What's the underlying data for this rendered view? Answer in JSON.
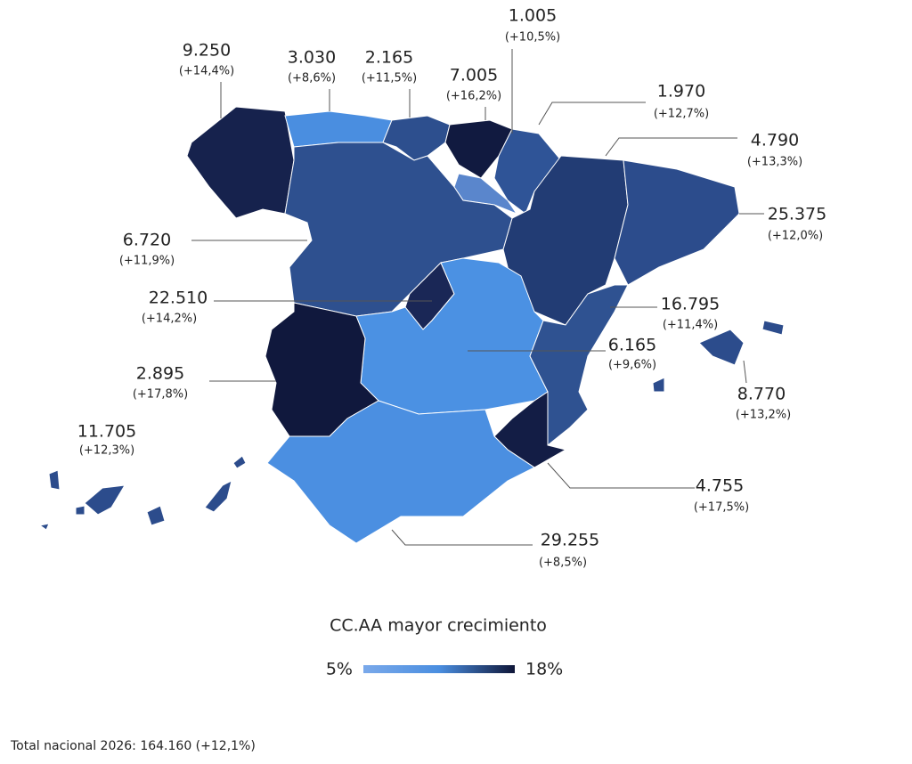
{
  "regions": [
    {
      "value": "9.250",
      "change": "(+14,4%)",
      "color": "#16224d"
    },
    {
      "value": "3.030",
      "change": "(+8,6%)",
      "color": "#4a8ee0"
    },
    {
      "value": "2.165",
      "change": "(+11,5%)",
      "color": "#2d4f8e"
    },
    {
      "value": "7.005",
      "change": "(+16,2%)",
      "color": "#111a40"
    },
    {
      "value": "1.005",
      "change": "(+10,5%)",
      "color": "#2f5497"
    },
    {
      "value": "1.970",
      "change": "(+12,7%)",
      "color": "#5a86cc"
    },
    {
      "value": "4.790",
      "change": "(+13,3%)",
      "color": "#223c74"
    },
    {
      "value": "25.375",
      "change": "(+12,0%)",
      "color": "#2c4c8c"
    },
    {
      "value": "6.720",
      "change": "(+11,9%)",
      "color": "#2e508f"
    },
    {
      "value": "22.510",
      "change": "(+14,2%)",
      "color": "#1a2756"
    },
    {
      "value": "6.165",
      "change": "(+9,6%)",
      "color": "#4b91e3"
    },
    {
      "value": "16.795",
      "change": "(+11,4%)",
      "color": "#2f5291"
    },
    {
      "value": "8.770",
      "change": "(+13,2%)",
      "color": "#2c4c8c"
    },
    {
      "value": "2.895",
      "change": "(+17,8%)",
      "color": "#10183d"
    },
    {
      "value": "11.705",
      "change": "(+12,3%)",
      "color": "#2c4c8c"
    },
    {
      "value": "4.755",
      "change": "(+17,5%)",
      "color": "#131d45"
    },
    {
      "value": "29.255",
      "change": "(+8,5%)",
      "color": "#4b8fe1"
    }
  ],
  "legend": {
    "title": "CC.AA mayor crecimiento",
    "min": "5%",
    "max": "18%",
    "gradient": [
      "#7aa9ea",
      "#4a8ee0",
      "#0f1638"
    ]
  },
  "footer": "Total nacional 2026: 164.160 (+12,1%)"
}
